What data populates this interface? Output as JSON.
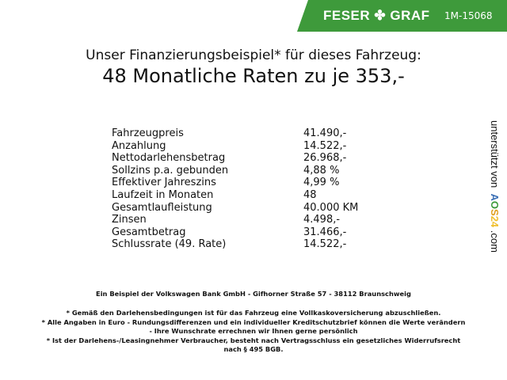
{
  "header": {
    "brand": "FESER",
    "brand2": "GRAF",
    "brand_icon": "clover-icon",
    "code": "1M-15068",
    "banner_color": "#3e9a3b"
  },
  "title": {
    "line1": "Unser Finanzierungsbeispiel* für dieses Fahrzeug:",
    "line2": "48 Monatliche Raten zu je 353,-"
  },
  "rows": [
    {
      "label": "Fahrzeugpreis",
      "value": "41.490,-"
    },
    {
      "label": "Anzahlung",
      "value": "14.522,-"
    },
    {
      "label": "Nettodarlehensbetrag",
      "value": "26.968,-"
    },
    {
      "label": "Sollzins p.a. gebunden",
      "value": "4,88 %"
    },
    {
      "label": "Effektiver Jahreszins",
      "value": "4,99 %"
    },
    {
      "label": "Laufzeit in Monaten",
      "value": "48"
    },
    {
      "label": "Gesamtlaufleistung",
      "value": "40.000 KM"
    },
    {
      "label": "Zinsen",
      "value": "4.498,-"
    },
    {
      "label": "Gesamtbetrag",
      "value": "31.466,-"
    },
    {
      "label": "Schlussrate (49. Rate)",
      "value": "14.522,-"
    }
  ],
  "side": {
    "text": "unterstützt von",
    "logo_a": "A",
    "logo_o": "O",
    "logo_s": "S",
    "logo_24": "24",
    "suffix": ".com"
  },
  "footer": {
    "bank": "Ein Beispiel der Volkswagen Bank GmbH - Gifhorner Straße 57 - 38112 Braunschweig",
    "note1": "* Gemäß den Darlehensbedingungen ist für das Fahrzeug eine Vollkaskoversicherung abzuschließen.",
    "note2a": "* Alle Angaben in Euro - Rundungsdifferenzen und ein individueller Kreditschutzbrief können die Werte verändern",
    "note2b": "- Ihre Wunschrate errechnen wir Ihnen gerne persönlich",
    "note3a": "* Ist der Darlehens-/Leasingnehmer Verbraucher, besteht nach Vertragsschluss ein gesetzliches Widerrufsrecht",
    "note3b": "nach § 495 BGB."
  }
}
